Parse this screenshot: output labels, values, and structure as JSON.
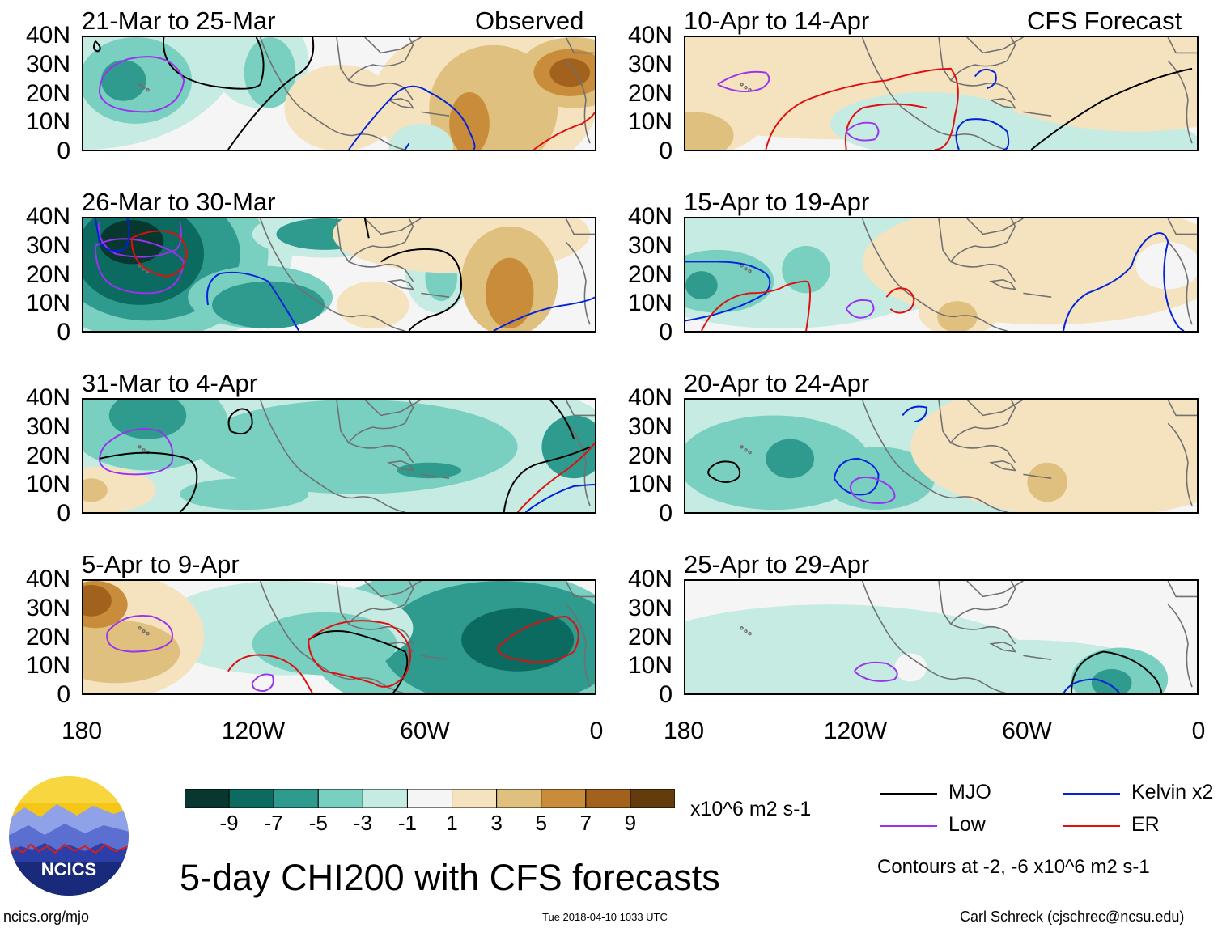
{
  "title": "5-day CHI200 with CFS forecasts",
  "observed_label": "Observed",
  "forecast_label": "CFS Forecast",
  "panels": [
    {
      "period": "21-Mar to 25-Mar",
      "kind": "observed"
    },
    {
      "period": "26-Mar to 30-Mar",
      "kind": "observed"
    },
    {
      "period": "31-Mar to 4-Apr",
      "kind": "observed"
    },
    {
      "period": "5-Apr to 9-Apr",
      "kind": "observed"
    },
    {
      "period": "10-Apr to 14-Apr",
      "kind": "forecast"
    },
    {
      "period": "15-Apr to 19-Apr",
      "kind": "forecast"
    },
    {
      "period": "20-Apr to 24-Apr",
      "kind": "forecast"
    },
    {
      "period": "25-Apr to 29-Apr",
      "kind": "forecast"
    }
  ],
  "axes": {
    "lat_labels": [
      "40N",
      "30N",
      "20N",
      "10N",
      "0"
    ],
    "lon_labels": [
      "180",
      "120W",
      "60W",
      "0"
    ]
  },
  "colorbar": {
    "units": "x10^6 m2 s-1",
    "tick_labels": [
      "-9",
      "-7",
      "-5",
      "-3",
      "-1",
      "1",
      "3",
      "5",
      "7",
      "9"
    ],
    "colors": [
      "#07372f",
      "#0c6b60",
      "#2f9a8e",
      "#79cfc0",
      "#c6ebe3",
      "#f5f5f5",
      "#f5e3c0",
      "#e0c07f",
      "#c98c3a",
      "#a2611c",
      "#633b0d"
    ]
  },
  "legend": {
    "items": [
      {
        "label": "MJO",
        "color": "#000000"
      },
      {
        "label": "Kelvin x2",
        "color": "#0022dd"
      },
      {
        "label": "Low",
        "color": "#9933ee"
      },
      {
        "label": "ER",
        "color": "#e01010"
      }
    ],
    "contour_note": "Contours at -2, -6 x10^6 m2 s-1"
  },
  "logo": {
    "text": "NCICS"
  },
  "footer": {
    "left": "ncics.org/mjo",
    "center": "Tue 2018-04-10 1033 UTC",
    "right": "Carl Schreck (cjschrec@ncsu.edu)"
  }
}
